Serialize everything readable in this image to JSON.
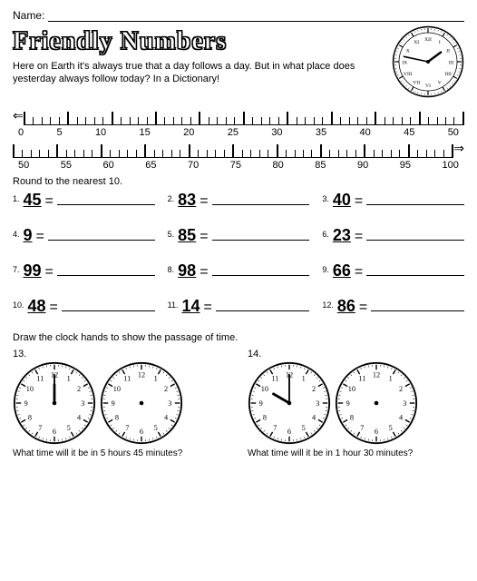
{
  "name_label": "Name:",
  "title": "Friendly Numbers",
  "riddle": "Here on Earth it's always true that a day follows a day. But in what place does yesterday always follow today? In a Dictionary!",
  "ruler": {
    "row1_labels": [
      "0",
      "5",
      "10",
      "15",
      "20",
      "25",
      "30",
      "35",
      "40",
      "45",
      "50"
    ],
    "row2_labels": [
      "50",
      "55",
      "60",
      "65",
      "70",
      "75",
      "80",
      "85",
      "90",
      "95",
      "100"
    ],
    "ticks_per_segment": 5,
    "major_count": 11
  },
  "instruction": "Round to the nearest 10.",
  "problems": [
    {
      "n": "1.",
      "v": "45"
    },
    {
      "n": "2.",
      "v": "83"
    },
    {
      "n": "3.",
      "v": "40"
    },
    {
      "n": "4.",
      "v": "9"
    },
    {
      "n": "5.",
      "v": "85"
    },
    {
      "n": "6.",
      "v": "23"
    },
    {
      "n": "7.",
      "v": "99"
    },
    {
      "n": "8.",
      "v": "98"
    },
    {
      "n": "9.",
      "v": "66"
    },
    {
      "n": "10.",
      "v": "48"
    },
    {
      "n": "11.",
      "v": "14"
    },
    {
      "n": "12.",
      "v": "86"
    }
  ],
  "clock_instruction": "Draw the clock hands to show the passage of time.",
  "clock_problems": [
    {
      "n": "13.",
      "time": {
        "h": 12,
        "m": 0
      },
      "q": "What time will it be in 5 hours 45 minutes?"
    },
    {
      "n": "14.",
      "time": {
        "h": 10,
        "m": 0
      },
      "q": "What time will it be in 1 hour 30 minutes?"
    }
  ],
  "decor_clock": {
    "h": 1,
    "m": 47
  },
  "colors": {
    "ink": "#000000",
    "bg": "#ffffff"
  }
}
